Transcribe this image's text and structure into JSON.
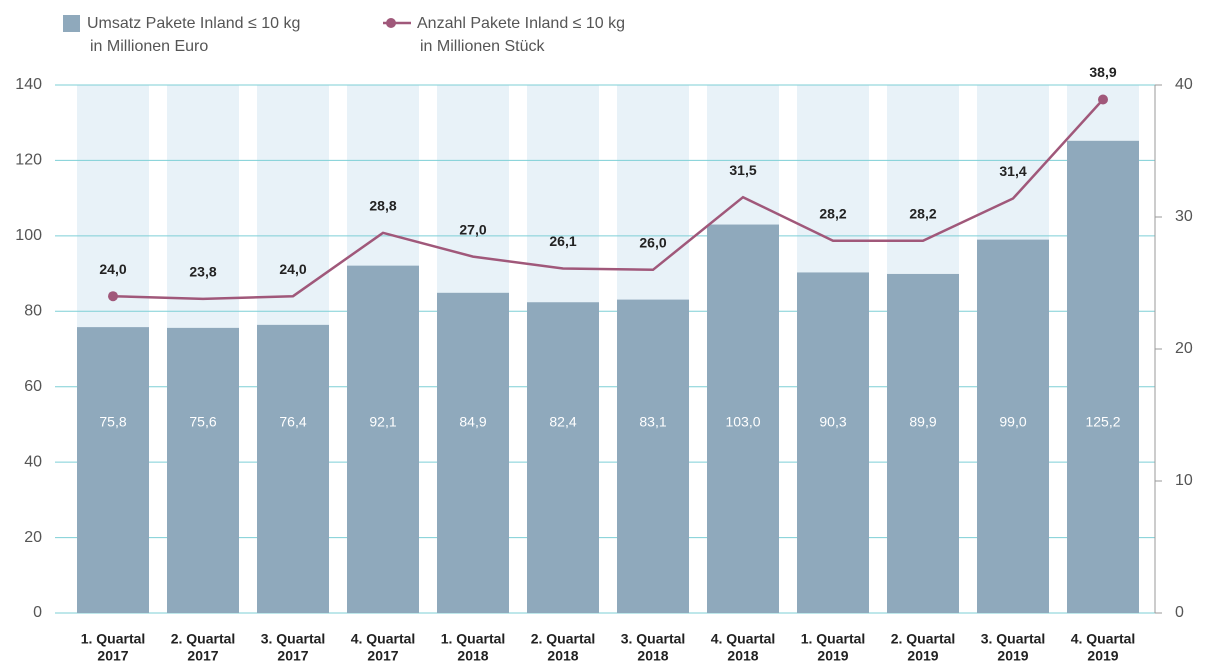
{
  "chart_data": {
    "type": "bar_line",
    "categories": [
      [
        "1. Quartal",
        "2017"
      ],
      [
        "2. Quartal",
        "2017"
      ],
      [
        "3. Quartal",
        "2017"
      ],
      [
        "4. Quartal",
        "2017"
      ],
      [
        "1. Quartal",
        "2018"
      ],
      [
        "2. Quartal",
        "2018"
      ],
      [
        "3. Quartal",
        "2018"
      ],
      [
        "4. Quartal",
        "2018"
      ],
      [
        "1. Quartal",
        "2019"
      ],
      [
        "2. Quartal",
        "2019"
      ],
      [
        "3. Quartal",
        "2019"
      ],
      [
        "4. Quartal",
        "2019"
      ]
    ],
    "series": [
      {
        "name": [
          "Umsatz Pakete Inland ≤ 10 kg",
          "in Millionen Euro"
        ],
        "type": "bar",
        "color": "#8fa9bc",
        "values": [
          75.8,
          75.6,
          76.4,
          92.1,
          84.9,
          82.4,
          83.1,
          103.0,
          90.3,
          89.9,
          99.0,
          125.2
        ],
        "value_labels": [
          "75,8",
          "75,6",
          "76,4",
          "92,1",
          "84,9",
          "82,4",
          "83,1",
          "103,0",
          "90,3",
          "89,9",
          "99,0",
          "125,2"
        ]
      },
      {
        "name": [
          "Anzahl Pakete Inland ≤ 10 kg",
          "in Millionen Stück"
        ],
        "type": "line",
        "color": "#a0587a",
        "axis": "y2",
        "values": [
          24.0,
          23.8,
          24.0,
          28.8,
          27.0,
          26.1,
          26.0,
          31.5,
          28.2,
          28.2,
          31.4,
          38.9
        ],
        "value_labels": [
          "24,0",
          "23,8",
          "24,0",
          "28,8",
          "27,0",
          "26,1",
          "26,0",
          "31,5",
          "28,2",
          "28,2",
          "31,4",
          "38,9"
        ]
      }
    ],
    "ylim": [
      0,
      140
    ],
    "yticks": [
      0,
      20,
      40,
      60,
      80,
      100,
      120,
      140
    ],
    "y2lim": [
      0,
      40
    ],
    "y2ticks": [
      0,
      10,
      20,
      30,
      40
    ],
    "grid": true,
    "band_color": "#e8f2f8",
    "grid_color": "#7ecfd6"
  }
}
